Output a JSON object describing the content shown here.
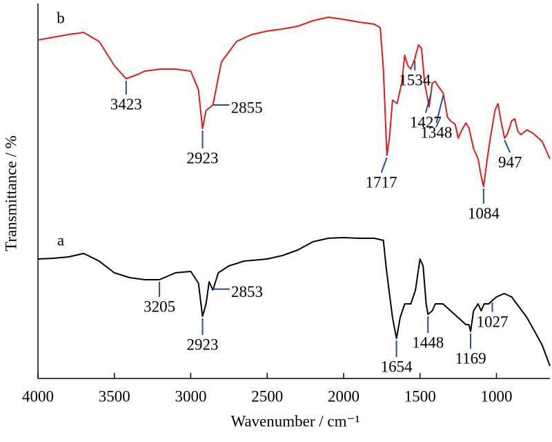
{
  "chart_data": {
    "type": "line",
    "x_label": "Wavenumber / cm⁻¹",
    "y_label": "Transmittance / %",
    "xlim": [
      4000,
      650
    ],
    "xticks": [
      4000,
      3500,
      3000,
      2500,
      2000,
      1500,
      1000
    ],
    "ylim": [
      0,
      543
    ],
    "grid": false,
    "series": [
      {
        "name": "a",
        "color": "#000000",
        "x": [
          4000,
          3900,
          3800,
          3700,
          3600,
          3500,
          3400,
          3300,
          3205,
          3100,
          3000,
          2950,
          2923,
          2900,
          2880,
          2855,
          2820,
          2750,
          2650,
          2500,
          2400,
          2300,
          2200,
          2100,
          2000,
          1900,
          1800,
          1740,
          1720,
          1700,
          1680,
          1654,
          1630,
          1600,
          1560,
          1530,
          1500,
          1480,
          1460,
          1448,
          1420,
          1400,
          1350,
          1300,
          1250,
          1200,
          1180,
          1169,
          1150,
          1120,
          1100,
          1080,
          1050,
          1027,
          1000,
          950,
          900,
          850,
          800,
          750,
          700,
          650
        ],
        "values": [
          173,
          174,
          176,
          181,
          170,
          153,
          146,
          143,
          143,
          153,
          155,
          138,
          90,
          108,
          140,
          128,
          153,
          163,
          170,
          173,
          178,
          186,
          198,
          203,
          204,
          203,
          203,
          200,
          158,
          123,
          88,
          58,
          88,
          108,
          108,
          128,
          173,
          163,
          108,
          93,
          98,
          108,
          108,
          98,
          88,
          78,
          78,
          68,
          98,
          108,
          98,
          108,
          108,
          113,
          118,
          123,
          118,
          103,
          88,
          68,
          48,
          18
        ]
      },
      {
        "name": "b",
        "color": "#e0191b",
        "x": [
          4000,
          3800,
          3700,
          3600,
          3500,
          3423,
          3350,
          3300,
          3200,
          3100,
          3000,
          2950,
          2923,
          2900,
          2855,
          2800,
          2700,
          2600,
          2500,
          2400,
          2300,
          2200,
          2100,
          2000,
          1900,
          1800,
          1760,
          1740,
          1717,
          1700,
          1680,
          1650,
          1620,
          1600,
          1580,
          1560,
          1534,
          1510,
          1490,
          1470,
          1440,
          1420,
          1400,
          1380,
          1348,
          1320,
          1300,
          1270,
          1250,
          1230,
          1200,
          1180,
          1150,
          1120,
          1100,
          1084,
          1060,
          1040,
          1010,
          990,
          970,
          947,
          930,
          900,
          880,
          860,
          840,
          800,
          760,
          700,
          650
        ],
        "values": [
          490,
          498,
          501,
          488,
          453,
          434,
          440,
          445,
          448,
          448,
          445,
          418,
          362,
          388,
          396,
          458,
          488,
          498,
          503,
          506,
          510,
          518,
          523,
          520,
          516,
          513,
          508,
          448,
          323,
          348,
          403,
          398,
          428,
          468,
          453,
          448,
          463,
          483,
          478,
          428,
          393,
          428,
          430,
          423,
          413,
          378,
          373,
          368,
          348,
          358,
          370,
          363,
          333,
          318,
          293,
          278,
          318,
          348,
          388,
          398,
          373,
          348,
          353,
          373,
          376,
          358,
          353,
          360,
          355,
          343,
          318
        ]
      }
    ],
    "annotations": [
      {
        "series": 1,
        "x": 3423
      },
      {
        "series": 1,
        "x": 2923
      },
      {
        "series": 1,
        "x": 2855
      },
      {
        "series": 1,
        "x": 1717
      },
      {
        "series": 1,
        "x": 1534
      },
      {
        "series": 1,
        "x": 1348
      },
      {
        "series": 1,
        "x": 1427
      },
      {
        "series": 1,
        "x": 1084
      },
      {
        "series": 1,
        "x": 947
      },
      {
        "series": 0,
        "x": 3205
      },
      {
        "series": 0,
        "x": 2923
      },
      {
        "series": 0,
        "x": 2853
      },
      {
        "series": 0,
        "x": 1654
      },
      {
        "series": 0,
        "x": 1448
      },
      {
        "series": 0,
        "x": 1169
      },
      {
        "series": 0,
        "x": 1027
      }
    ]
  }
}
